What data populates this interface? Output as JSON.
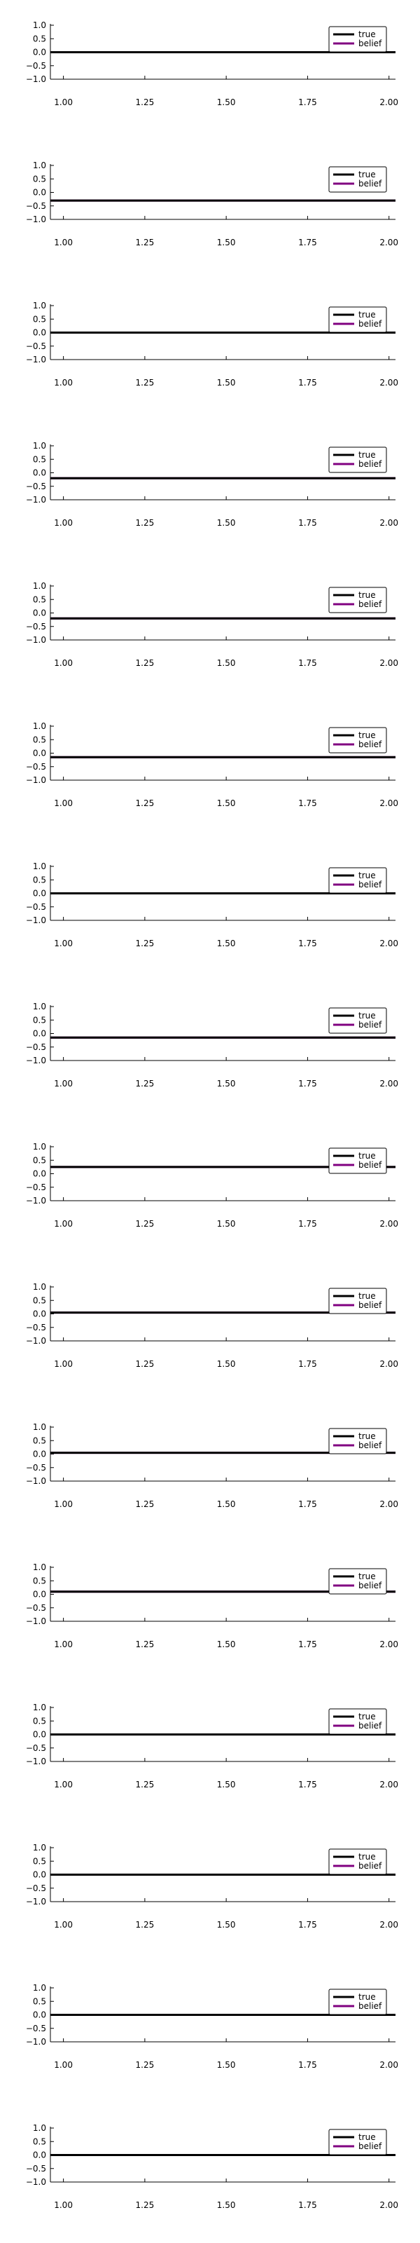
{
  "colors": {
    "true": "#000000",
    "belief": "#800080",
    "axis": "#000000",
    "background": "#ffffff"
  },
  "chart_data": [
    {
      "type": "line",
      "xlim": [
        0.96,
        2.02
      ],
      "ylim": [
        -1.0,
        1.0
      ],
      "xticks": [
        1.0,
        1.25,
        1.5,
        1.75,
        2.0
      ],
      "xtick_labels": [
        "1.00",
        "1.25",
        "1.50",
        "1.75",
        "2.00"
      ],
      "yticks": [
        1.0,
        0.5,
        0.0,
        -0.5,
        -1.0
      ],
      "ytick_labels": [
        "1.0",
        "0.5",
        "0.0",
        "−0.5",
        "−1.0"
      ],
      "legend": "top-right",
      "grid": false,
      "series": [
        {
          "name": "true",
          "x": [
            0.96,
            2.02
          ],
          "y": [
            0.0,
            0.0
          ]
        },
        {
          "name": "belief",
          "x": [
            0.96,
            2.02
          ],
          "y": [
            0.0,
            0.0
          ]
        }
      ]
    },
    {
      "type": "line",
      "xlim": [
        0.96,
        2.02
      ],
      "ylim": [
        -1.0,
        1.0
      ],
      "xticks": [
        1.0,
        1.25,
        1.5,
        1.75,
        2.0
      ],
      "xtick_labels": [
        "1.00",
        "1.25",
        "1.50",
        "1.75",
        "2.00"
      ],
      "yticks": [
        1.0,
        0.5,
        0.0,
        -0.5,
        -1.0
      ],
      "ytick_labels": [
        "1.0",
        "0.5",
        "0.0",
        "−0.5",
        "−1.0"
      ],
      "legend": "top-right",
      "grid": false,
      "series": [
        {
          "name": "true",
          "x": [
            0.96,
            2.02
          ],
          "y": [
            -0.3,
            -0.3
          ]
        },
        {
          "name": "belief",
          "x": [
            0.96,
            2.02
          ],
          "y": [
            -0.3,
            -0.3
          ]
        }
      ]
    },
    {
      "type": "line",
      "xlim": [
        0.96,
        2.02
      ],
      "ylim": [
        -1.0,
        1.0
      ],
      "xticks": [
        1.0,
        1.25,
        1.5,
        1.75,
        2.0
      ],
      "xtick_labels": [
        "1.00",
        "1.25",
        "1.50",
        "1.75",
        "2.00"
      ],
      "yticks": [
        1.0,
        0.5,
        0.0,
        -0.5,
        -1.0
      ],
      "ytick_labels": [
        "1.0",
        "0.5",
        "0.0",
        "−0.5",
        "−1.0"
      ],
      "legend": "top-right",
      "grid": false,
      "series": [
        {
          "name": "true",
          "x": [
            0.96,
            2.02
          ],
          "y": [
            0.0,
            0.0
          ]
        },
        {
          "name": "belief",
          "x": [
            0.96,
            2.02
          ],
          "y": [
            0.0,
            0.0
          ]
        }
      ]
    },
    {
      "type": "line",
      "xlim": [
        0.96,
        2.02
      ],
      "ylim": [
        -1.0,
        1.0
      ],
      "xticks": [
        1.0,
        1.25,
        1.5,
        1.75,
        2.0
      ],
      "xtick_labels": [
        "1.00",
        "1.25",
        "1.50",
        "1.75",
        "2.00"
      ],
      "yticks": [
        1.0,
        0.5,
        0.0,
        -0.5,
        -1.0
      ],
      "ytick_labels": [
        "1.0",
        "0.5",
        "0.0",
        "−0.5",
        "−1.0"
      ],
      "legend": "top-right",
      "grid": false,
      "series": [
        {
          "name": "true",
          "x": [
            0.96,
            2.02
          ],
          "y": [
            -0.2,
            -0.2
          ]
        },
        {
          "name": "belief",
          "x": [
            0.96,
            2.02
          ],
          "y": [
            -0.2,
            -0.2
          ]
        }
      ]
    },
    {
      "type": "line",
      "xlim": [
        0.96,
        2.02
      ],
      "ylim": [
        -1.0,
        1.0
      ],
      "xticks": [
        1.0,
        1.25,
        1.5,
        1.75,
        2.0
      ],
      "xtick_labels": [
        "1.00",
        "1.25",
        "1.50",
        "1.75",
        "2.00"
      ],
      "yticks": [
        1.0,
        0.5,
        0.0,
        -0.5,
        -1.0
      ],
      "ytick_labels": [
        "1.0",
        "0.5",
        "0.0",
        "−0.5",
        "−1.0"
      ],
      "legend": "top-right",
      "grid": false,
      "series": [
        {
          "name": "true",
          "x": [
            0.96,
            2.02
          ],
          "y": [
            -0.2,
            -0.2
          ]
        },
        {
          "name": "belief",
          "x": [
            0.96,
            2.02
          ],
          "y": [
            -0.2,
            -0.2
          ]
        }
      ]
    },
    {
      "type": "line",
      "xlim": [
        0.96,
        2.02
      ],
      "ylim": [
        -1.0,
        1.0
      ],
      "xticks": [
        1.0,
        1.25,
        1.5,
        1.75,
        2.0
      ],
      "xtick_labels": [
        "1.00",
        "1.25",
        "1.50",
        "1.75",
        "2.00"
      ],
      "yticks": [
        1.0,
        0.5,
        0.0,
        -0.5,
        -1.0
      ],
      "ytick_labels": [
        "1.0",
        "0.5",
        "0.0",
        "−0.5",
        "−1.0"
      ],
      "legend": "top-right",
      "grid": false,
      "series": [
        {
          "name": "true",
          "x": [
            0.96,
            2.02
          ],
          "y": [
            -0.15,
            -0.15
          ]
        },
        {
          "name": "belief",
          "x": [
            0.96,
            2.02
          ],
          "y": [
            -0.15,
            -0.15
          ]
        }
      ]
    },
    {
      "type": "line",
      "xlim": [
        0.96,
        2.02
      ],
      "ylim": [
        -1.0,
        1.0
      ],
      "xticks": [
        1.0,
        1.25,
        1.5,
        1.75,
        2.0
      ],
      "xtick_labels": [
        "1.00",
        "1.25",
        "1.50",
        "1.75",
        "2.00"
      ],
      "yticks": [
        1.0,
        0.5,
        0.0,
        -0.5,
        -1.0
      ],
      "ytick_labels": [
        "1.0",
        "0.5",
        "0.0",
        "−0.5",
        "−1.0"
      ],
      "legend": "top-right",
      "grid": false,
      "series": [
        {
          "name": "true",
          "x": [
            0.96,
            2.02
          ],
          "y": [
            0.0,
            0.0
          ]
        },
        {
          "name": "belief",
          "x": [
            0.96,
            2.02
          ],
          "y": [
            0.0,
            0.0
          ]
        }
      ]
    },
    {
      "type": "line",
      "xlim": [
        0.96,
        2.02
      ],
      "ylim": [
        -1.0,
        1.0
      ],
      "xticks": [
        1.0,
        1.25,
        1.5,
        1.75,
        2.0
      ],
      "xtick_labels": [
        "1.00",
        "1.25",
        "1.50",
        "1.75",
        "2.00"
      ],
      "yticks": [
        1.0,
        0.5,
        0.0,
        -0.5,
        -1.0
      ],
      "ytick_labels": [
        "1.0",
        "0.5",
        "0.0",
        "−0.5",
        "−1.0"
      ],
      "legend": "top-right",
      "grid": false,
      "series": [
        {
          "name": "true",
          "x": [
            0.96,
            2.02
          ],
          "y": [
            -0.15,
            -0.15
          ]
        },
        {
          "name": "belief",
          "x": [
            0.96,
            2.02
          ],
          "y": [
            -0.15,
            -0.15
          ]
        }
      ]
    },
    {
      "type": "line",
      "xlim": [
        0.96,
        2.02
      ],
      "ylim": [
        -1.0,
        1.0
      ],
      "xticks": [
        1.0,
        1.25,
        1.5,
        1.75,
        2.0
      ],
      "xtick_labels": [
        "1.00",
        "1.25",
        "1.50",
        "1.75",
        "2.00"
      ],
      "yticks": [
        1.0,
        0.5,
        0.0,
        -0.5,
        -1.0
      ],
      "ytick_labels": [
        "1.0",
        "0.5",
        "0.0",
        "−0.5",
        "−1.0"
      ],
      "legend": "top-right",
      "grid": false,
      "series": [
        {
          "name": "true",
          "x": [
            0.96,
            2.02
          ],
          "y": [
            0.25,
            0.25
          ]
        },
        {
          "name": "belief",
          "x": [
            0.96,
            2.02
          ],
          "y": [
            0.25,
            0.25
          ]
        }
      ]
    },
    {
      "type": "line",
      "xlim": [
        0.96,
        2.02
      ],
      "ylim": [
        -1.0,
        1.0
      ],
      "xticks": [
        1.0,
        1.25,
        1.5,
        1.75,
        2.0
      ],
      "xtick_labels": [
        "1.00",
        "1.25",
        "1.50",
        "1.75",
        "2.00"
      ],
      "yticks": [
        1.0,
        0.5,
        0.0,
        -0.5,
        -1.0
      ],
      "ytick_labels": [
        "1.0",
        "0.5",
        "0.0",
        "−0.5",
        "−1.0"
      ],
      "legend": "top-right",
      "grid": false,
      "series": [
        {
          "name": "true",
          "x": [
            0.96,
            2.02
          ],
          "y": [
            0.05,
            0.05
          ]
        },
        {
          "name": "belief",
          "x": [
            0.96,
            2.02
          ],
          "y": [
            0.05,
            0.05
          ]
        }
      ]
    },
    {
      "type": "line",
      "xlim": [
        0.96,
        2.02
      ],
      "ylim": [
        -1.0,
        1.0
      ],
      "xticks": [
        1.0,
        1.25,
        1.5,
        1.75,
        2.0
      ],
      "xtick_labels": [
        "1.00",
        "1.25",
        "1.50",
        "1.75",
        "2.00"
      ],
      "yticks": [
        1.0,
        0.5,
        0.0,
        -0.5,
        -1.0
      ],
      "ytick_labels": [
        "1.0",
        "0.5",
        "0.0",
        "−0.5",
        "−1.0"
      ],
      "legend": "top-right",
      "grid": false,
      "series": [
        {
          "name": "true",
          "x": [
            0.96,
            2.02
          ],
          "y": [
            0.05,
            0.05
          ]
        },
        {
          "name": "belief",
          "x": [
            0.96,
            2.02
          ],
          "y": [
            0.05,
            0.05
          ]
        }
      ]
    },
    {
      "type": "line",
      "xlim": [
        0.96,
        2.02
      ],
      "ylim": [
        -1.0,
        1.0
      ],
      "xticks": [
        1.0,
        1.25,
        1.5,
        1.75,
        2.0
      ],
      "xtick_labels": [
        "1.00",
        "1.25",
        "1.50",
        "1.75",
        "2.00"
      ],
      "yticks": [
        1.0,
        0.5,
        0.0,
        -0.5,
        -1.0
      ],
      "ytick_labels": [
        "1.0",
        "0.5",
        "0.0",
        "−0.5",
        "−1.0"
      ],
      "legend": "top-right",
      "grid": false,
      "series": [
        {
          "name": "true",
          "x": [
            0.96,
            2.02
          ],
          "y": [
            0.1,
            0.1
          ]
        },
        {
          "name": "belief",
          "x": [
            0.96,
            2.02
          ],
          "y": [
            0.1,
            0.1
          ]
        }
      ]
    },
    {
      "type": "line",
      "xlim": [
        0.96,
        2.02
      ],
      "ylim": [
        -1.0,
        1.0
      ],
      "xticks": [
        1.0,
        1.25,
        1.5,
        1.75,
        2.0
      ],
      "xtick_labels": [
        "1.00",
        "1.25",
        "1.50",
        "1.75",
        "2.00"
      ],
      "yticks": [
        1.0,
        0.5,
        0.0,
        -0.5,
        -1.0
      ],
      "ytick_labels": [
        "1.0",
        "0.5",
        "0.0",
        "−0.5",
        "−1.0"
      ],
      "legend": "top-right",
      "grid": false,
      "series": [
        {
          "name": "true",
          "x": [
            0.96,
            2.02
          ],
          "y": [
            0.0,
            0.0
          ]
        },
        {
          "name": "belief",
          "x": [
            0.96,
            2.02
          ],
          "y": [
            0.0,
            0.0
          ]
        }
      ]
    },
    {
      "type": "line",
      "xlim": [
        0.96,
        2.02
      ],
      "ylim": [
        -1.0,
        1.0
      ],
      "xticks": [
        1.0,
        1.25,
        1.5,
        1.75,
        2.0
      ],
      "xtick_labels": [
        "1.00",
        "1.25",
        "1.50",
        "1.75",
        "2.00"
      ],
      "yticks": [
        1.0,
        0.5,
        0.0,
        -0.5,
        -1.0
      ],
      "ytick_labels": [
        "1.0",
        "0.5",
        "0.0",
        "−0.5",
        "−1.0"
      ],
      "legend": "top-right",
      "grid": false,
      "series": [
        {
          "name": "true",
          "x": [
            0.96,
            2.02
          ],
          "y": [
            0.0,
            0.0
          ]
        },
        {
          "name": "belief",
          "x": [
            0.96,
            2.02
          ],
          "y": [
            0.0,
            0.0
          ]
        }
      ]
    },
    {
      "type": "line",
      "xlim": [
        0.96,
        2.02
      ],
      "ylim": [
        -1.0,
        1.0
      ],
      "xticks": [
        1.0,
        1.25,
        1.5,
        1.75,
        2.0
      ],
      "xtick_labels": [
        "1.00",
        "1.25",
        "1.50",
        "1.75",
        "2.00"
      ],
      "yticks": [
        1.0,
        0.5,
        0.0,
        -0.5,
        -1.0
      ],
      "ytick_labels": [
        "1.0",
        "0.5",
        "0.0",
        "−0.5",
        "−1.0"
      ],
      "legend": "top-right",
      "grid": false,
      "series": [
        {
          "name": "true",
          "x": [
            0.96,
            2.02
          ],
          "y": [
            0.0,
            0.0
          ]
        },
        {
          "name": "belief",
          "x": [
            0.96,
            2.02
          ],
          "y": [
            0.0,
            0.0
          ]
        }
      ]
    },
    {
      "type": "line",
      "xlim": [
        0.96,
        2.02
      ],
      "ylim": [
        -1.0,
        1.0
      ],
      "xticks": [
        1.0,
        1.25,
        1.5,
        1.75,
        2.0
      ],
      "xtick_labels": [
        "1.00",
        "1.25",
        "1.50",
        "1.75",
        "2.00"
      ],
      "yticks": [
        1.0,
        0.5,
        0.0,
        -0.5,
        -1.0
      ],
      "ytick_labels": [
        "1.0",
        "0.5",
        "0.0",
        "−0.5",
        "−1.0"
      ],
      "legend": "top-right",
      "grid": false,
      "series": [
        {
          "name": "true",
          "x": [
            0.96,
            2.02
          ],
          "y": [
            0.0,
            0.0
          ]
        },
        {
          "name": "belief",
          "x": [
            0.96,
            2.02
          ],
          "y": [
            0.0,
            0.0
          ]
        }
      ]
    }
  ]
}
